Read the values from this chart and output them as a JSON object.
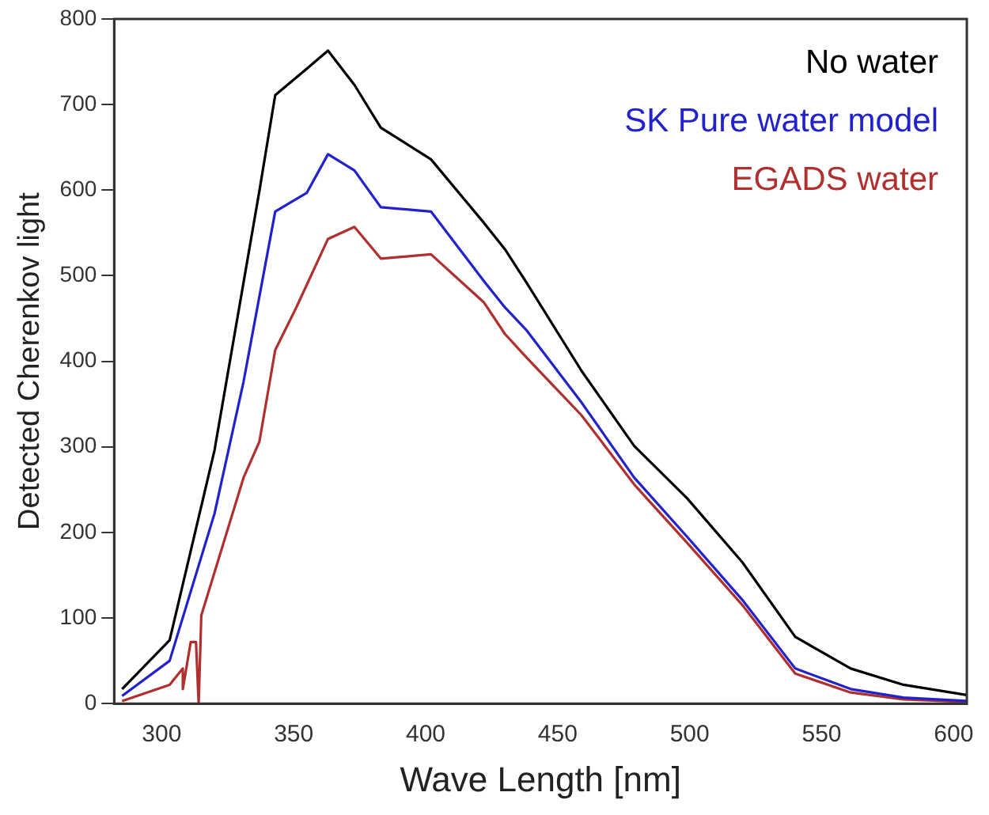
{
  "chart_data": {
    "type": "line",
    "xlabel": "Wave Length [nm]",
    "ylabel": "Detected Cherenkov light",
    "xlim": [
      282,
      605
    ],
    "ylim": [
      0,
      800
    ],
    "xticks": [
      300,
      350,
      400,
      450,
      500,
      550,
      600
    ],
    "yticks": [
      0,
      100,
      200,
      300,
      400,
      500,
      600,
      700,
      800
    ],
    "grid": false,
    "legend": "top right",
    "marker": "none",
    "line_style": "solid",
    "series": [
      {
        "name": "No water",
        "color": "#000000",
        "x": [
          285,
          303,
          320,
          337,
          343,
          355,
          363,
          373,
          383,
          402,
          422,
          430,
          438,
          459,
          479,
          499,
          520,
          540,
          561,
          581,
          605
        ],
        "values": [
          17,
          74,
          296,
          599,
          711,
          742,
          763,
          723,
          673,
          636,
          562,
          531,
          493,
          389,
          301,
          240,
          165,
          78,
          41,
          22,
          10
        ]
      },
      {
        "name": "SK Pure water model",
        "color": "#2222cc",
        "x": [
          285,
          303,
          320,
          331,
          343,
          355,
          363,
          373,
          383,
          402,
          422,
          430,
          438,
          459,
          479,
          499,
          520,
          540,
          561,
          581,
          605
        ],
        "values": [
          9,
          50,
          222,
          376,
          575,
          597,
          642,
          623,
          580,
          575,
          494,
          463,
          437,
          352,
          264,
          195,
          121,
          41,
          17,
          7,
          3
        ]
      },
      {
        "name": "EGADS water",
        "color": "#b03030",
        "x": [
          285,
          303,
          308,
          308,
          311,
          313,
          314,
          315,
          331,
          337,
          343,
          351,
          363,
          373,
          383,
          402,
          422,
          430,
          438,
          459,
          479,
          499,
          520,
          540,
          561,
          581,
          605
        ],
        "values": [
          3,
          22,
          41,
          17,
          72,
          72,
          0,
          103,
          264,
          306,
          413,
          463,
          543,
          557,
          520,
          525,
          469,
          432,
          405,
          337,
          256,
          188,
          115,
          35,
          13,
          5,
          2
        ]
      }
    ]
  }
}
